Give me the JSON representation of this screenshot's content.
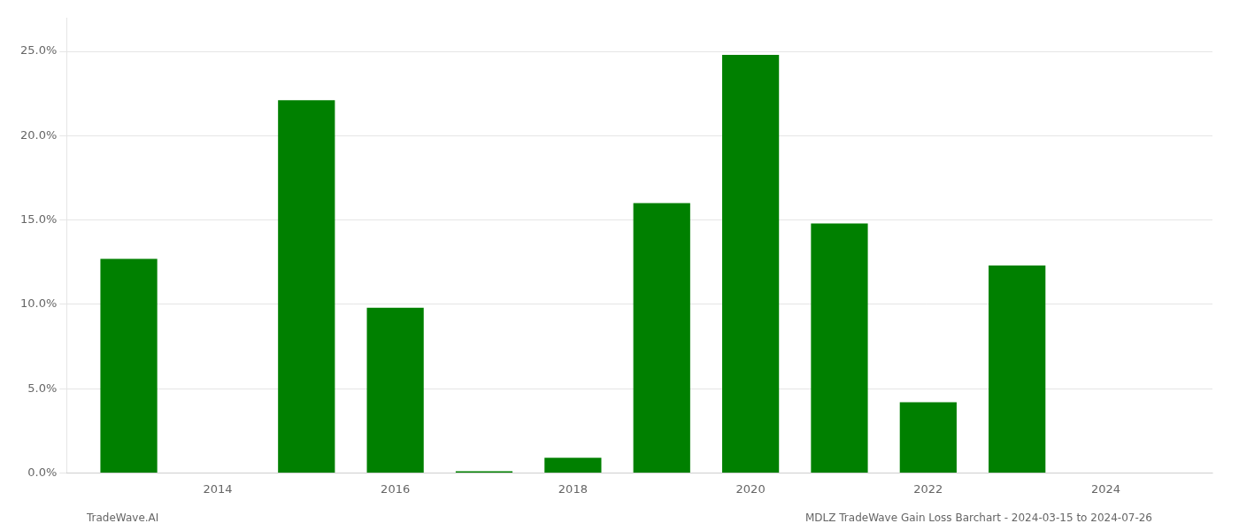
{
  "chart_data": {
    "type": "bar",
    "x": [
      2013,
      2015,
      2016,
      2017,
      2018,
      2019,
      2020,
      2021,
      2022,
      2023,
      2024
    ],
    "values": [
      0.127,
      0.221,
      0.098,
      0.001,
      0.009,
      0.16,
      0.248,
      0.148,
      0.042,
      0.123,
      0.0
    ],
    "color": "#008000",
    "xlim": [
      2012.3,
      2025.2
    ],
    "xticks": [
      2014,
      2016,
      2018,
      2020,
      2022,
      2024
    ],
    "ylim": [
      0,
      0.27
    ],
    "yticks": [
      {
        "value": 0.0,
        "label": "0.0%"
      },
      {
        "value": 0.05,
        "label": "5.0%"
      },
      {
        "value": 0.1,
        "label": "10.0%"
      },
      {
        "value": 0.15,
        "label": "15.0%"
      },
      {
        "value": 0.2,
        "label": "20.0%"
      },
      {
        "value": 0.25,
        "label": "25.0%"
      }
    ],
    "grid": "y",
    "annotations": [
      "TradeWave.AI",
      "MDLZ TradeWave Gain Loss Barchart - 2024-03-15 to 2024-07-26"
    ]
  }
}
